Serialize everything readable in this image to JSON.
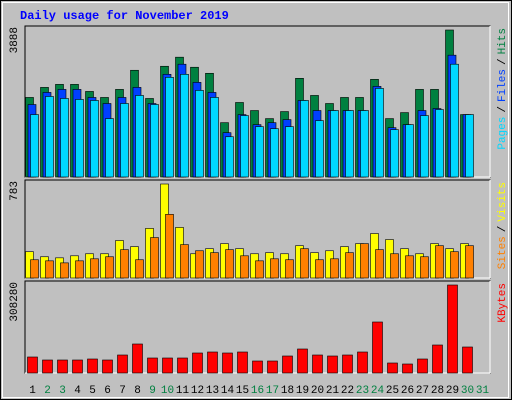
{
  "chart_data": {
    "type": "bar",
    "title": "Daily usage for November 2019",
    "legend_separator": "/",
    "categories": [
      "1",
      "2",
      "3",
      "4",
      "5",
      "6",
      "7",
      "8",
      "9",
      "10",
      "11",
      "12",
      "13",
      "14",
      "15",
      "16",
      "17",
      "18",
      "19",
      "20",
      "21",
      "22",
      "23",
      "24",
      "25",
      "26",
      "27",
      "28",
      "29",
      "30",
      "31"
    ],
    "category_colors": [
      "#000000",
      "#008040",
      "#008040",
      "#000000",
      "#000000",
      "#000000",
      "#000000",
      "#000000",
      "#008040",
      "#008040",
      "#000000",
      "#000000",
      "#000000",
      "#000000",
      "#000000",
      "#008040",
      "#008040",
      "#000000",
      "#000000",
      "#000000",
      "#000000",
      "#000000",
      "#008040",
      "#008040",
      "#000000",
      "#000000",
      "#000000",
      "#000000",
      "#000000",
      "#008040",
      "#008040"
    ],
    "panels": [
      {
        "ylim": [
          0,
          3888
        ],
        "yticks": [
          3888
        ],
        "series": [
          {
            "name": "Hits",
            "color": "#008040",
            "values": [
              2104,
              2370,
              2450,
              2450,
              2263,
              2104,
              2317,
              2823,
              2077,
              2929,
              3169,
              2903,
              2743,
              1438,
              1971,
              1758,
              1545,
              1731,
              2610,
              2157,
              1944,
              2104,
              2104,
              2583,
              1545,
              1704,
              2317,
              2317,
              3888,
              1651,
              null
            ]
          },
          {
            "name": "Files",
            "color": "#0040ff",
            "values": [
              1917,
              2237,
              2317,
              2317,
              2104,
              1944,
              2104,
              2370,
              1944,
              2716,
              2983,
              2503,
              2237,
              1172,
              1651,
              1385,
              1438,
              1518,
              2024,
              1758,
              1758,
              1758,
              1758,
              2397,
              1305,
              1385,
              1758,
              1811,
              3222,
              1651,
              null
            ]
          },
          {
            "name": "Pages",
            "color": "#00d8ff",
            "values": [
              1651,
              2130,
              2077,
              2051,
              2024,
              1545,
              1944,
              2157,
              1917,
              2636,
              2716,
              2290,
              2104,
              1065,
              1624,
              1332,
              1278,
              1332,
              2024,
              1491,
              1758,
              1758,
              1758,
              2343,
              1252,
              1385,
              1624,
              1784,
              2983,
              1651,
              null
            ]
          }
        ]
      },
      {
        "ylim": [
          0,
          783
        ],
        "yticks": [
          783
        ],
        "series": [
          {
            "name": "Visits",
            "color": "#ffff00",
            "values": [
              219,
              177,
              168,
              185,
              202,
              202,
              312,
              261,
              413,
              783,
              421,
              202,
              244,
              286,
              244,
              202,
              211,
              202,
              269,
              211,
              227,
              261,
              286,
              370,
              320,
              244,
              202,
              286,
              244,
              286,
              null
            ]
          },
          {
            "name": "Sites",
            "color": "#ff8000",
            "values": [
              152,
              143,
              126,
              143,
              160,
              177,
              236,
              152,
              337,
              530,
              278,
              227,
              211,
              236,
              185,
              143,
              160,
              152,
              244,
              152,
              160,
              211,
              286,
              236,
              202,
              185,
              177,
              269,
              219,
              269,
              null
            ]
          }
        ]
      },
      {
        "ylim": [
          0,
          308280
        ],
        "yticks": [
          308280
        ],
        "series": [
          {
            "name": "KBytes",
            "color": "#ff0000",
            "values": [
              56048,
              45539,
              45539,
              45539,
              49042,
              45539,
              63054,
              101587,
              52545,
              52545,
              52545,
              70060,
              73563,
              70060,
              73563,
              42036,
              42036,
              59551,
              84072,
              63054,
              59551,
              63054,
              73563,
              178653,
              35030,
              31527,
              49042,
              98084,
              308280,
              91078,
              null
            ]
          }
        ]
      }
    ]
  }
}
